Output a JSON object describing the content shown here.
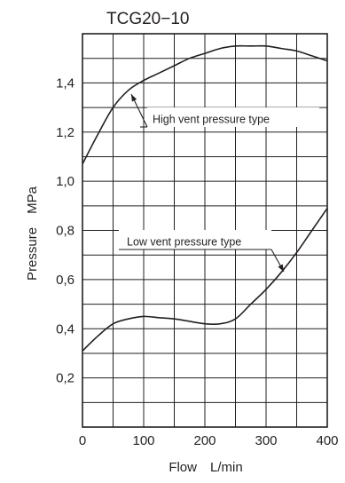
{
  "chart_data": {
    "type": "line",
    "title": "TCG20−10",
    "xlabel": "Flow　L/min",
    "ylabel": "Pressure　MPa",
    "xlim": [
      0,
      400
    ],
    "ylim": [
      0,
      1.6
    ],
    "x_ticks": [
      {
        "value": 0,
        "label": "0"
      },
      {
        "value": 100,
        "label": "100"
      },
      {
        "value": 200,
        "label": "200"
      },
      {
        "value": 300,
        "label": "300"
      },
      {
        "value": 400,
        "label": "400"
      }
    ],
    "y_ticks": [
      {
        "value": 0.2,
        "label": "0,2"
      },
      {
        "value": 0.4,
        "label": "0,4"
      },
      {
        "value": 0.6,
        "label": "0,6"
      },
      {
        "value": 0.8,
        "label": "0,8"
      },
      {
        "value": 1.0,
        "label": "1,0"
      },
      {
        "value": 1.2,
        "label": "1,2"
      },
      {
        "value": 1.4,
        "label": "1,4"
      }
    ],
    "grid": true,
    "grid_x_step": 50,
    "grid_y_step": 0.1,
    "series": [
      {
        "name": "High vent pressure type",
        "x": [
          0,
          25,
          50,
          75,
          100,
          125,
          150,
          175,
          200,
          225,
          250,
          275,
          300,
          325,
          350,
          375,
          400
        ],
        "y": [
          1.07,
          1.19,
          1.3,
          1.37,
          1.41,
          1.44,
          1.47,
          1.5,
          1.52,
          1.54,
          1.55,
          1.55,
          1.55,
          1.54,
          1.53,
          1.51,
          1.49
        ]
      },
      {
        "name": "Low vent pressure type",
        "x": [
          0,
          25,
          50,
          75,
          100,
          125,
          150,
          175,
          200,
          225,
          250,
          275,
          300,
          325,
          350,
          375,
          400
        ],
        "y": [
          0.31,
          0.37,
          0.42,
          0.44,
          0.45,
          0.445,
          0.44,
          0.43,
          0.42,
          0.42,
          0.44,
          0.5,
          0.56,
          0.63,
          0.71,
          0.8,
          0.89
        ]
      }
    ],
    "annotations": [
      {
        "text": "High vent pressure type",
        "series": 0
      },
      {
        "text": "Low vent pressure type",
        "series": 1
      }
    ]
  }
}
